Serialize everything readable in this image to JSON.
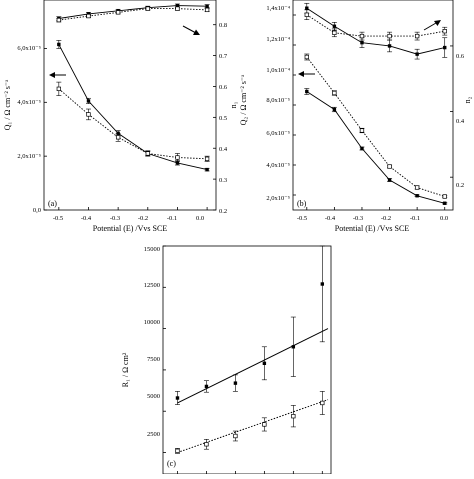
{
  "panels": [
    {
      "id": "a",
      "panel_label": "(a)",
      "xlabel": "Potential (E) /Vvs SCE",
      "ylabel_left": "Q₁ / Ω cm⁻² s⁻ᵃ",
      "ylabel_right": "n₁",
      "left_ticks": [
        "0,0",
        "2,0x10⁻⁵",
        "4,0x10⁻⁵",
        "6,0x10⁻⁵"
      ],
      "right_ticks": [
        "0.2",
        "0.3",
        "0.4",
        "0.5",
        "0.6",
        "0.7",
        "0.8"
      ],
      "x_ticks": [
        "-0.5",
        "-0.4",
        "-0.3",
        "-0.2",
        "-0.1",
        "0.0"
      ]
    },
    {
      "id": "b",
      "panel_label": "(b)",
      "xlabel": "Potential (E) /Vvs SCE",
      "ylabel_left": "Q₂ / Ω cm⁻² s⁻ᵃ",
      "ylabel_right": "n₂",
      "left_ticks": [
        "2,0x10⁻⁵",
        "4,0x10⁻⁵",
        "6,0x10⁻⁵",
        "8,0x10⁻⁵",
        "1,0x10⁻⁴",
        "1,2x10⁻⁴",
        "1,4x10⁻⁴"
      ],
      "right_ticks": [
        "0.2",
        "0.4",
        "0.6"
      ],
      "x_ticks": [
        "-0.5",
        "-0.4",
        "-0.3",
        "-0.2",
        "-0.1",
        "0.0"
      ]
    },
    {
      "id": "c",
      "panel_label": "(c)",
      "xlabel": "",
      "ylabel_left": "R₁ / Ω cm²",
      "left_ticks": [
        "2500",
        "5000",
        "7500",
        "10000",
        "12500",
        "15000"
      ]
    }
  ],
  "chart_data": [
    {
      "type": "line",
      "panel": "a",
      "x": [
        -0.5,
        -0.4,
        -0.3,
        -0.2,
        -0.1,
        0.0
      ],
      "xlim": [
        -0.55,
        0.03
      ],
      "ylim_left": [
        0,
        7.8e-05
      ],
      "ylim_right": [
        0.2,
        0.88
      ],
      "series": [
        {
          "axis": "left",
          "style": "solid",
          "marker": "filled-square",
          "values": [
            6.15e-05,
            4.05e-05,
            2.85e-05,
            2.1e-05,
            1.75e-05,
            1.5e-05
          ],
          "errors": [
            1.5e-06,
            1e-06,
            1e-06,
            8e-07,
            8e-07,
            5e-07
          ]
        },
        {
          "axis": "left",
          "style": "dotted",
          "marker": "open-square",
          "values": [
            4.5e-05,
            3.55e-05,
            2.7e-05,
            2.1e-05,
            1.95e-05,
            1.9e-05
          ],
          "errors": [
            2.5e-06,
            2e-06,
            1.5e-06,
            1e-06,
            1.5e-06,
            1e-06
          ]
        },
        {
          "axis": "right",
          "style": "solid",
          "marker": "filled-square",
          "values": [
            0.82,
            0.835,
            0.845,
            0.855,
            0.862,
            0.86
          ],
          "errors": [
            0.006,
            0.005,
            0.005,
            0.005,
            0.005,
            0.005
          ]
        },
        {
          "axis": "right",
          "style": "dotted",
          "marker": "open-square",
          "values": [
            0.815,
            0.828,
            0.84,
            0.852,
            0.852,
            0.848
          ],
          "errors": [
            0.006,
            0.005,
            0.005,
            0.005,
            0.005,
            0.005
          ]
        }
      ]
    },
    {
      "type": "line",
      "panel": "b",
      "x": [
        -0.5,
        -0.4,
        -0.3,
        -0.2,
        -0.1,
        0.0
      ],
      "xlim": [
        -0.55,
        0.03
      ],
      "ylim_left": [
        1e-05,
        0.00015
      ],
      "ylim_right": [
        0.1,
        0.74
      ],
      "series": [
        {
          "axis": "left",
          "style": "solid",
          "marker": "filled-square",
          "values": [
            8.9e-05,
            7.7e-05,
            5.1e-05,
            3e-05,
            1.95e-05,
            1.45e-05
          ],
          "errors": [
            2e-06,
            1.5e-06,
            1e-06,
            1e-06,
            5e-07,
            5e-07
          ]
        },
        {
          "axis": "left",
          "style": "dotted",
          "marker": "open-square",
          "values": [
            0.000112,
            8.8e-05,
            6.3e-05,
            3.9e-05,
            2.5e-05,
            1.9e-05
          ],
          "errors": [
            2e-06,
            1.5e-06,
            1.5e-06,
            1e-06,
            1e-06,
            5e-07
          ]
        },
        {
          "axis": "right",
          "style": "solid",
          "marker": "filled-square",
          "values": [
            0.715,
            0.66,
            0.61,
            0.6,
            0.575,
            0.595
          ],
          "errors": [
            0.015,
            0.012,
            0.015,
            0.018,
            0.015,
            0.03
          ]
        },
        {
          "axis": "right",
          "style": "dotted",
          "marker": "open-square",
          "values": [
            0.695,
            0.64,
            0.63,
            0.63,
            0.63,
            0.645
          ],
          "errors": [
            0.015,
            0.012,
            0.012,
            0.012,
            0.012,
            0.012
          ]
        }
      ]
    },
    {
      "type": "scatter",
      "panel": "c",
      "x": [
        -0.5,
        -0.4,
        -0.3,
        -0.2,
        -0.1,
        0.0
      ],
      "xlim": [
        -0.55,
        0.03
      ],
      "ylim": [
        1200,
        15000
      ],
      "series": [
        {
          "style": "solid-fit",
          "marker": "filled-square",
          "values": [
            5800,
            6500,
            6700,
            7900,
            8900,
            12700
          ],
          "errors": [
            400,
            350,
            500,
            1000,
            1800,
            3500
          ],
          "fit": [
            5500,
            10000
          ]
        },
        {
          "style": "dotted-fit",
          "marker": "open-square",
          "values": [
            2600,
            3000,
            3500,
            4200,
            4700,
            5500
          ],
          "errors": [
            150,
            300,
            300,
            400,
            650,
            700
          ],
          "fit": [
            2500,
            5700
          ]
        }
      ]
    }
  ]
}
